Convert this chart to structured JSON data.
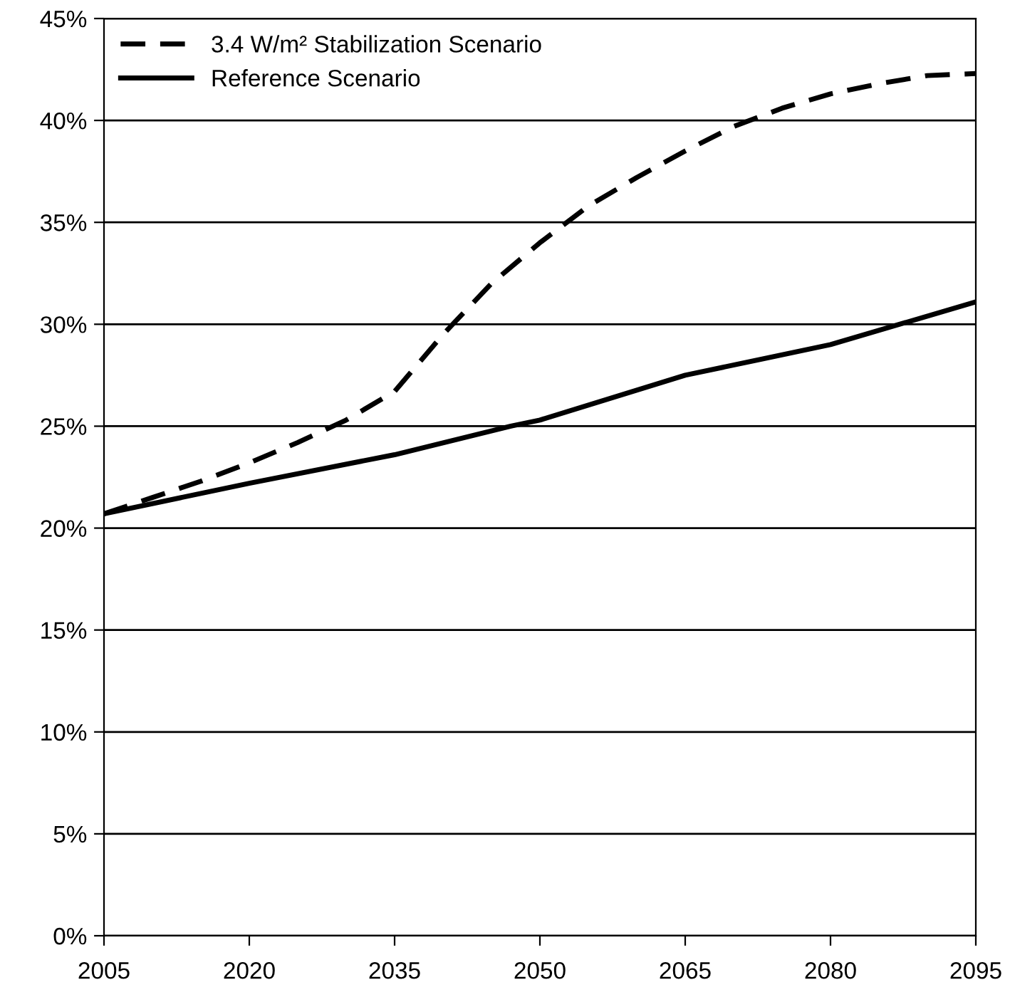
{
  "chart_data": {
    "type": "line",
    "x": [
      2005,
      2010,
      2015,
      2020,
      2025,
      2030,
      2035,
      2040,
      2045,
      2050,
      2055,
      2060,
      2065,
      2070,
      2075,
      2080,
      2085,
      2090,
      2095
    ],
    "series": [
      {
        "name": "3.4 W/m² Stabilization Scenario",
        "color": "#000000",
        "line_style": "dashed",
        "values": [
          20.7,
          21.5,
          22.3,
          23.2,
          24.2,
          25.3,
          26.7,
          29.5,
          32.0,
          34.0,
          35.8,
          37.2,
          38.5,
          39.7,
          40.6,
          41.3,
          41.8,
          42.2,
          42.3
        ]
      },
      {
        "name": "Reference Scenario",
        "color": "#000000",
        "line_style": "solid",
        "x": [
          2005,
          2020,
          2035,
          2047,
          2050,
          2065,
          2080,
          2095
        ],
        "values": [
          20.7,
          22.2,
          23.6,
          25.0,
          25.3,
          27.5,
          29.0,
          31.1
        ]
      }
    ],
    "xlim": [
      2005,
      2095
    ],
    "xticks": [
      2005,
      2020,
      2035,
      2050,
      2065,
      2080,
      2095
    ],
    "ylim": [
      0,
      45
    ],
    "yticks": [
      {
        "value": 0,
        "label": "0%"
      },
      {
        "value": 5,
        "label": "5%"
      },
      {
        "value": 10,
        "label": "10%"
      },
      {
        "value": 15,
        "label": "15%"
      },
      {
        "value": 20,
        "label": "20%"
      },
      {
        "value": 25,
        "label": "25%"
      },
      {
        "value": 30,
        "label": "30%"
      },
      {
        "value": 35,
        "label": "35%"
      },
      {
        "value": 40,
        "label": "40%"
      },
      {
        "value": 45,
        "label": "45%"
      }
    ],
    "grid": "y",
    "legend": "top left"
  }
}
